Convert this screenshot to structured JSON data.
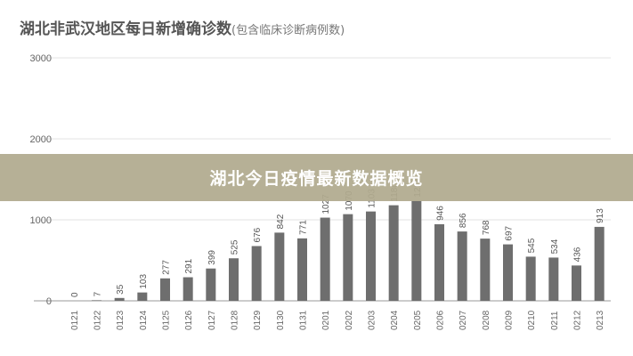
{
  "banner": {
    "text": "湖北今日疫情最新数据概览"
  },
  "chart_data": {
    "type": "bar",
    "title": "湖北非武汉地区每日新增确诊数",
    "subtitle": "(包含临床诊断病例数)",
    "xlabel": "",
    "ylabel": "",
    "ylim": [
      0,
      3000
    ],
    "yticks": [
      "0",
      "1000",
      "2000",
      "3000"
    ],
    "grid": true,
    "categories": [
      "0121",
      "0122",
      "0123",
      "0124",
      "0125",
      "0126",
      "0127",
      "0128",
      "0129",
      "0130",
      "0131",
      "0201",
      "0202",
      "0203",
      "0204",
      "0205",
      "0206",
      "0207",
      "0208",
      "0209",
      "0210",
      "0211",
      "0212",
      "0213"
    ],
    "values": [
      0,
      7,
      35,
      103,
      277,
      291,
      399,
      525,
      676,
      842,
      771,
      1027,
      1070,
      1103,
      1180,
      1235,
      946,
      856,
      768,
      697,
      545,
      534,
      436,
      913
    ],
    "labels": [
      "0",
      "7",
      "35",
      "103",
      "277",
      "291",
      "399",
      "525",
      "676",
      "842",
      "771",
      "1027",
      "1070",
      "1103",
      "1180",
      "1235",
      "946",
      "856",
      "768",
      "697",
      "545",
      "534",
      "436",
      "913"
    ],
    "bar_color": "#6e6e6e"
  }
}
